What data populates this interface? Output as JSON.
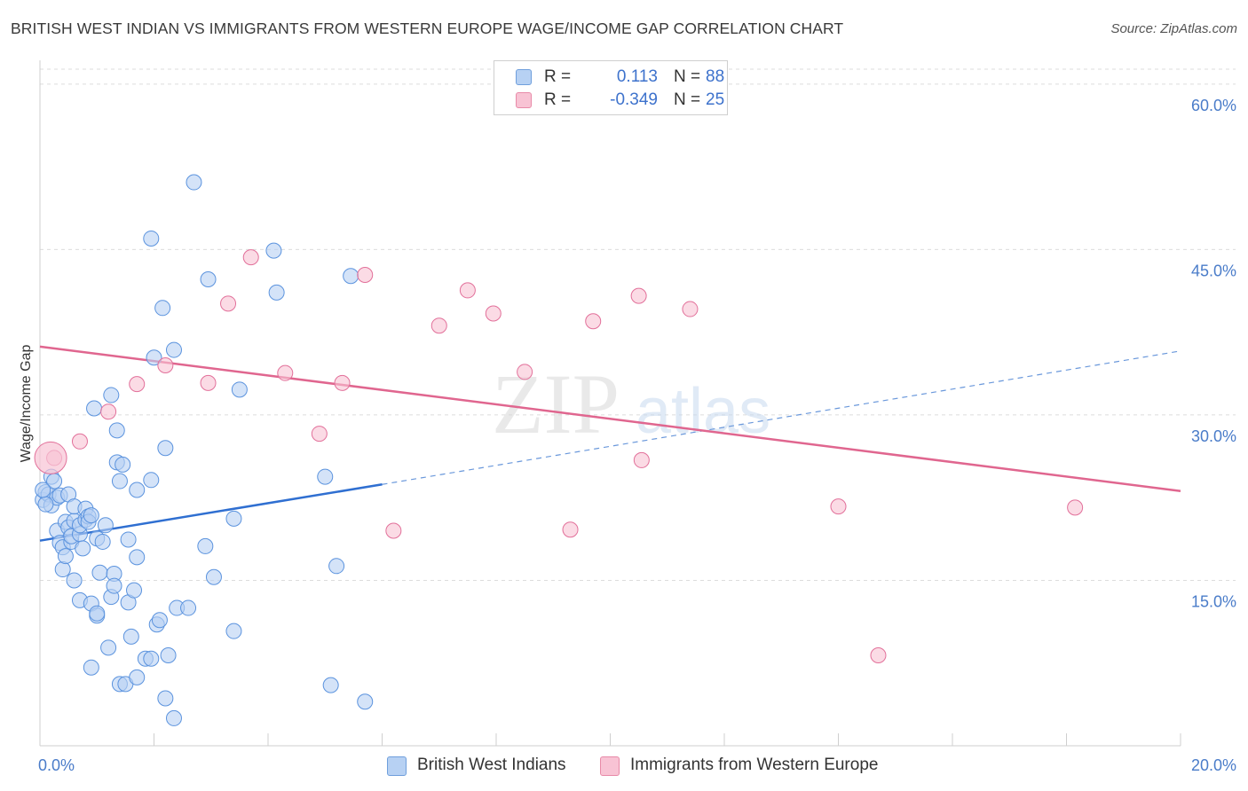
{
  "title": "BRITISH WEST INDIAN VS IMMIGRANTS FROM WESTERN EUROPE WAGE/INCOME GAP CORRELATION CHART",
  "source": "Source: ZipAtlas.com",
  "watermark": {
    "zip": "ZIP",
    "atlas": "atlas"
  },
  "legend": {
    "rows": [
      {
        "r_label": "R =",
        "r_value": "0.113",
        "n_label": "N =",
        "n_value": "88",
        "color": "#a8c8f0",
        "border": "#6f9fdc"
      },
      {
        "r_label": "R =",
        "r_value": "-0.349",
        "n_label": "N =",
        "n_value": "25",
        "color": "#f8c0d2",
        "border": "#e88aa8"
      }
    ]
  },
  "bottom_legend": [
    {
      "label": "British West Indians",
      "color": "#a8c8f0",
      "border": "#6f9fdc"
    },
    {
      "label": "Immigrants from Western Europe",
      "color": "#f8c0d2",
      "border": "#e88aa8"
    }
  ],
  "chart_data": {
    "type": "scatter",
    "title": "BRITISH WEST INDIAN VS IMMIGRANTS FROM WESTERN EUROPE WAGE/INCOME GAP CORRELATION CHART",
    "xlabel": "",
    "ylabel": "Wage/Income Gap",
    "xlim": [
      0,
      20
    ],
    "ylim": [
      0,
      62
    ],
    "x_tick_labels": [
      "0.0%",
      "20.0%"
    ],
    "y_ticks": [
      15,
      30,
      45,
      60
    ],
    "y_tick_labels": [
      "15.0%",
      "30.0%",
      "45.0%",
      "60.0%"
    ],
    "grid": true,
    "legend_position": "top-center",
    "series": [
      {
        "name": "British West Indians",
        "color": "#5b93de",
        "fill": "#b7d1f3",
        "r": 0.113,
        "n": 88,
        "trend": {
          "x0": 0,
          "y0": 18.6,
          "x1": 6,
          "y1": 23.7,
          "dash_to_x": 20,
          "dash_to_y": 35.8
        },
        "points": [
          [
            0.05,
            22.3
          ],
          [
            0.1,
            23.0
          ],
          [
            0.15,
            22.8
          ],
          [
            0.2,
            24.4
          ],
          [
            0.2,
            21.8
          ],
          [
            0.25,
            24.0
          ],
          [
            0.3,
            22.5
          ],
          [
            0.35,
            22.7
          ],
          [
            0.3,
            19.5
          ],
          [
            0.35,
            18.4
          ],
          [
            0.4,
            18.0
          ],
          [
            0.4,
            16.0
          ],
          [
            0.45,
            17.2
          ],
          [
            0.45,
            20.3
          ],
          [
            0.5,
            19.8
          ],
          [
            0.5,
            22.8
          ],
          [
            0.55,
            18.5
          ],
          [
            0.55,
            19.0
          ],
          [
            0.6,
            20.4
          ],
          [
            0.6,
            21.7
          ],
          [
            0.6,
            15.0
          ],
          [
            0.7,
            19.2
          ],
          [
            0.7,
            20.0
          ],
          [
            0.7,
            13.2
          ],
          [
            0.75,
            17.9
          ],
          [
            0.8,
            20.5
          ],
          [
            0.8,
            21.5
          ],
          [
            0.85,
            20.8
          ],
          [
            0.85,
            20.3
          ],
          [
            0.9,
            20.9
          ],
          [
            0.9,
            7.1
          ],
          [
            0.9,
            12.9
          ],
          [
            0.95,
            30.6
          ],
          [
            1.0,
            11.8
          ],
          [
            1.0,
            12.0
          ],
          [
            1.0,
            18.8
          ],
          [
            1.05,
            15.7
          ],
          [
            1.1,
            18.5
          ],
          [
            1.15,
            20.0
          ],
          [
            1.2,
            8.9
          ],
          [
            1.25,
            31.8
          ],
          [
            1.25,
            13.5
          ],
          [
            1.3,
            15.6
          ],
          [
            1.3,
            14.5
          ],
          [
            1.35,
            25.7
          ],
          [
            1.35,
            28.6
          ],
          [
            1.4,
            24.0
          ],
          [
            1.4,
            5.6
          ],
          [
            1.45,
            25.5
          ],
          [
            1.5,
            5.6
          ],
          [
            1.55,
            13.0
          ],
          [
            1.55,
            18.7
          ],
          [
            1.6,
            9.9
          ],
          [
            1.65,
            14.1
          ],
          [
            1.7,
            6.2
          ],
          [
            1.7,
            17.1
          ],
          [
            1.7,
            23.2
          ],
          [
            1.85,
            7.9
          ],
          [
            1.95,
            7.9
          ],
          [
            1.95,
            24.1
          ],
          [
            1.95,
            46.0
          ],
          [
            2.0,
            35.2
          ],
          [
            2.05,
            11.0
          ],
          [
            2.1,
            11.4
          ],
          [
            2.15,
            39.7
          ],
          [
            2.2,
            27.0
          ],
          [
            2.2,
            4.3
          ],
          [
            2.25,
            8.2
          ],
          [
            2.35,
            35.9
          ],
          [
            2.35,
            2.5
          ],
          [
            2.4,
            12.5
          ],
          [
            2.6,
            12.5
          ],
          [
            2.7,
            51.1
          ],
          [
            2.9,
            18.1
          ],
          [
            2.95,
            42.3
          ],
          [
            3.05,
            15.3
          ],
          [
            3.4,
            20.6
          ],
          [
            3.4,
            10.4
          ],
          [
            3.5,
            32.3
          ],
          [
            4.1,
            44.9
          ],
          [
            4.15,
            41.1
          ],
          [
            5.0,
            24.4
          ],
          [
            5.1,
            5.5
          ],
          [
            5.2,
            16.3
          ],
          [
            5.45,
            42.6
          ],
          [
            5.7,
            4.0
          ],
          [
            0.1,
            21.9
          ],
          [
            0.05,
            23.2
          ]
        ]
      },
      {
        "name": "Immigrants from Western Europe",
        "color": "#e2709a",
        "fill": "#f8c3d4",
        "r": -0.349,
        "n": 25,
        "trend": {
          "x0": 0,
          "y0": 36.2,
          "x1": 20,
          "y1": 23.1
        },
        "points": [
          [
            0.25,
            26.1
          ],
          [
            0.7,
            27.6
          ],
          [
            1.2,
            30.3
          ],
          [
            1.7,
            32.8
          ],
          [
            2.2,
            34.5
          ],
          [
            2.95,
            32.9
          ],
          [
            3.3,
            40.1
          ],
          [
            3.7,
            44.3
          ],
          [
            4.3,
            33.8
          ],
          [
            4.9,
            28.3
          ],
          [
            5.3,
            32.9
          ],
          [
            5.7,
            42.7
          ],
          [
            6.2,
            19.5
          ],
          [
            7.0,
            38.1
          ],
          [
            7.5,
            41.3
          ],
          [
            7.95,
            39.2
          ],
          [
            8.5,
            33.9
          ],
          [
            9.3,
            19.6
          ],
          [
            9.7,
            38.5
          ],
          [
            10.5,
            40.8
          ],
          [
            10.55,
            25.9
          ],
          [
            11.4,
            39.6
          ],
          [
            14.0,
            21.7
          ],
          [
            14.7,
            8.2
          ],
          [
            18.15,
            21.6
          ]
        ]
      }
    ]
  }
}
